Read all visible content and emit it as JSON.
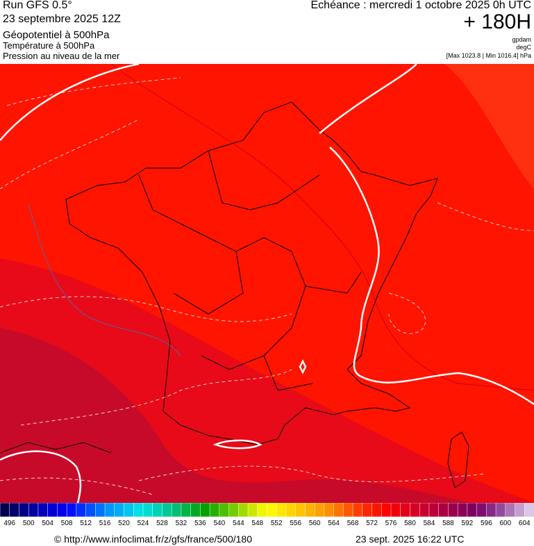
{
  "header": {
    "run": "Run GFS 0.5°",
    "run_date": "23 septembre 2025 12Z",
    "field_1": "Géopotentiel à 500hPa",
    "field_2": "Température à 500hPa",
    "field_3": "Pression au niveau de la mer",
    "valid_time": "Echéance : mercredi 1 octobre 2025 0h UTC",
    "lead_time": "+ 180H",
    "unit_1": "gpdam",
    "unit_2": "degC",
    "pressure_range": "[Max 1023.8 | Min 1016.4] hPa"
  },
  "colorbar": {
    "labels": [
      "496",
      "500",
      "504",
      "508",
      "512",
      "516",
      "520",
      "524",
      "528",
      "532",
      "536",
      "540",
      "544",
      "548",
      "552",
      "556",
      "560",
      "564",
      "568",
      "572",
      "576",
      "580",
      "584",
      "588",
      "592",
      "596",
      "600",
      "604"
    ]
  },
  "footer": {
    "url": "© http://www.infoclimat.fr/z/gfs/france/500/180",
    "timestamp": "23 sept. 2025 16:22 UTC"
  }
}
